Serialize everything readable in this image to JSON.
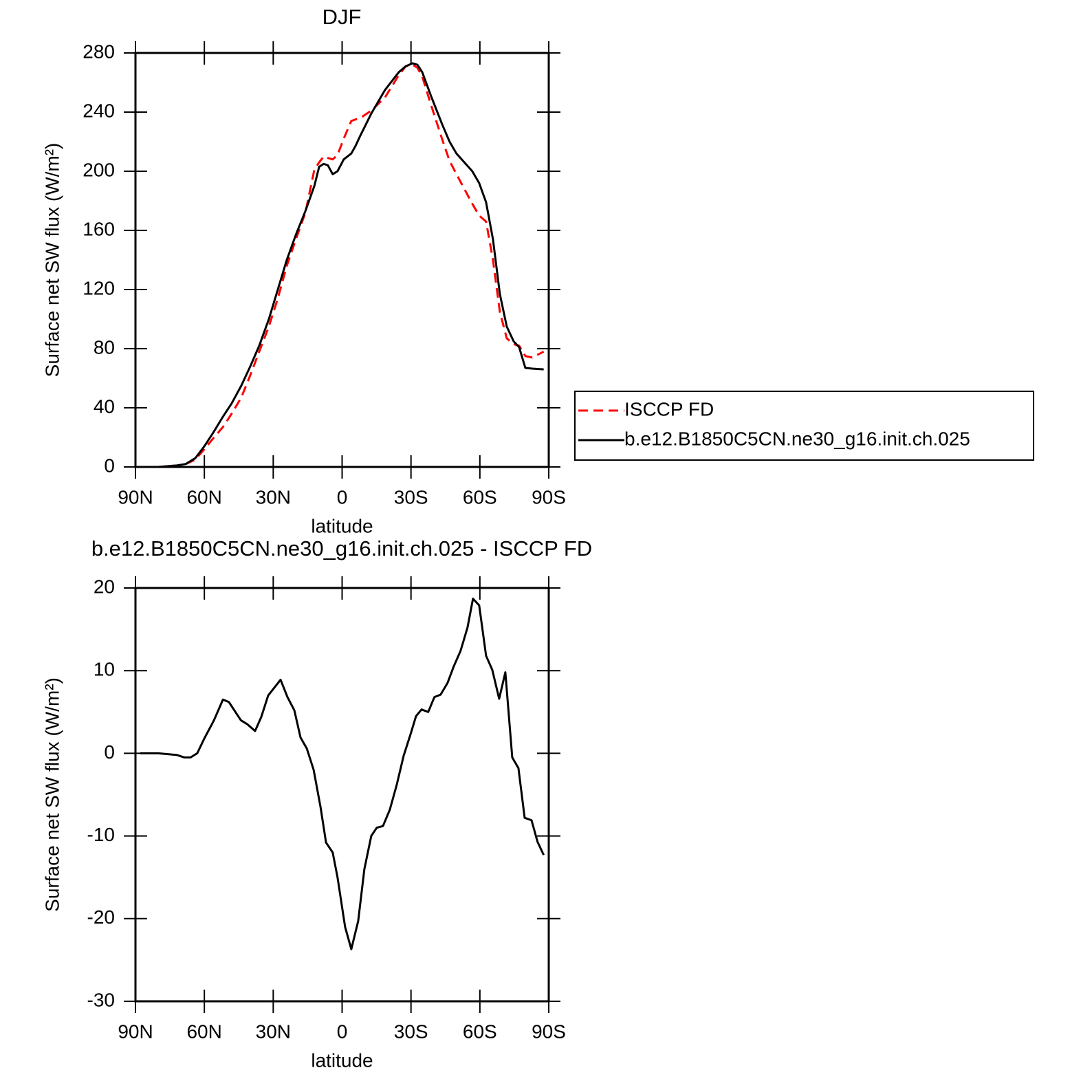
{
  "chart_data": [
    {
      "type": "line",
      "title": "DJF",
      "xlabel": "latitude",
      "ylabel": "Surface net SW flux (W/m²)",
      "x": [
        87.9,
        80.1,
        72.0,
        68.1,
        63.9,
        60.0,
        55.8,
        51.9,
        48.1,
        43.9,
        40.0,
        36.1,
        31.9,
        28.0,
        24.1,
        19.9,
        16.0,
        12.1,
        10.0,
        8.0,
        6.2,
        4.1,
        2.0,
        -0.7,
        -4.0,
        -5.8,
        -7.9,
        -12.7,
        -18.7,
        -24.7,
        -27.7,
        -30.7,
        -32.8,
        -34.9,
        -38.7,
        -43.5,
        -46.8,
        -49.8,
        -56.7,
        -59.7,
        -62.7,
        -65.7,
        -68.7,
        -71.7,
        -74.7,
        -77.1,
        -79.8,
        -82.8,
        -87.8
      ],
      "series": [
        {
          "name": "ISCCP FD",
          "color": "#ff0000",
          "style": "dashed",
          "values": [
            0,
            0,
            1,
            2,
            5,
            12,
            20,
            27,
            36,
            47,
            62,
            78,
            95,
            114,
            136,
            155,
            172,
            201,
            206,
            210,
            209,
            208,
            211,
            222,
            234,
            235,
            236,
            241,
            250,
            265,
            271,
            272,
            270,
            264,
            245,
            222,
            207,
            198,
            178,
            170,
            166,
            140,
            105,
            87,
            83,
            82,
            75,
            74,
            78
          ]
        },
        {
          "name": "b.e12.B1850C5CN.ne30_g16.init.ch.025",
          "color": "#000000",
          "style": "solid",
          "values": [
            0,
            0,
            1,
            2,
            6,
            14,
            24,
            34,
            43,
            55,
            68,
            82,
            100,
            120,
            140,
            158,
            173,
            190,
            203,
            205,
            204,
            198,
            200,
            208,
            212,
            217,
            224,
            239,
            255,
            267,
            271,
            273,
            272,
            267,
            251,
            232,
            220,
            212,
            200,
            192,
            179,
            154,
            117,
            95,
            85,
            81,
            67,
            66.5,
            66
          ]
        }
      ],
      "xlim": [
        90,
        -90
      ],
      "xticks": [
        {
          "value": 90,
          "label": "90N"
        },
        {
          "value": 60,
          "label": "60N"
        },
        {
          "value": 30,
          "label": "30N"
        },
        0,
        {
          "value": -30,
          "label": "30S"
        },
        {
          "value": -60,
          "label": "60S"
        },
        {
          "value": -90,
          "label": "90S"
        }
      ],
      "ylim": [
        0,
        280
      ],
      "yticks": [
        0,
        40,
        80,
        120,
        160,
        200,
        240,
        280
      ],
      "legend": "right"
    },
    {
      "type": "line",
      "title": "b.e12.B1850C5CN.ne30_g16.init.ch.025 - ISCCP FD",
      "xlabel": "latitude",
      "ylabel": "Surface net SW flux (W/m²)",
      "x": [
        87.9,
        80.1,
        72.0,
        68.7,
        66.0,
        63.1,
        60.0,
        55.8,
        51.9,
        49.3,
        44.1,
        41.2,
        37.9,
        35.2,
        32.2,
        26.8,
        23.8,
        20.8,
        18.1,
        15.4,
        12.4,
        9.4,
        7.0,
        4.1,
        2.0,
        -1.3,
        -4.0,
        -7.0,
        -9.7,
        -12.7,
        -15.1,
        -17.8,
        -20.8,
        -23.8,
        -26.8,
        -29.8,
        -32.2,
        -34.6,
        -37.5,
        -40.2,
        -42.9,
        -45.9,
        -48.6,
        -51.6,
        -54.6,
        -57.0,
        -59.7,
        -62.7,
        -65.4,
        -68.4,
        -71.1,
        -74.1,
        -76.8,
        -79.5,
        -82.5,
        -85.1,
        -87.8
      ],
      "values": [
        0,
        0,
        -0.2,
        -0.5,
        -0.5,
        0,
        1.8,
        4,
        6.5,
        6.2,
        4,
        3.5,
        2.7,
        4.4,
        7,
        8.9,
        6.8,
        5.2,
        1.9,
        0.6,
        -2,
        -6.5,
        -10.8,
        -12,
        -15,
        -21,
        -23.7,
        -20.3,
        -14,
        -10,
        -9,
        -8.8,
        -6.8,
        -3.8,
        -0.3,
        2.3,
        4.5,
        5.3,
        5,
        6.8,
        7.1,
        8.5,
        10.5,
        12.4,
        15.2,
        18.7,
        17.9,
        11.8,
        10.1,
        6.6,
        9.8,
        -0.5,
        -1.8,
        -7.8,
        -8.1,
        -10.7,
        -12.3
      ],
      "color": "#000000",
      "xlim": [
        90,
        -90
      ],
      "xticks": [
        {
          "value": 90,
          "label": "90N"
        },
        {
          "value": 60,
          "label": "60N"
        },
        {
          "value": 30,
          "label": "30N"
        },
        0,
        {
          "value": -30,
          "label": "30S"
        },
        {
          "value": -60,
          "label": "60S"
        },
        {
          "value": -90,
          "label": "90S"
        }
      ],
      "ylim": [
        -30,
        20
      ],
      "yticks": [
        -30,
        -20,
        -10,
        0,
        10,
        20
      ]
    }
  ]
}
